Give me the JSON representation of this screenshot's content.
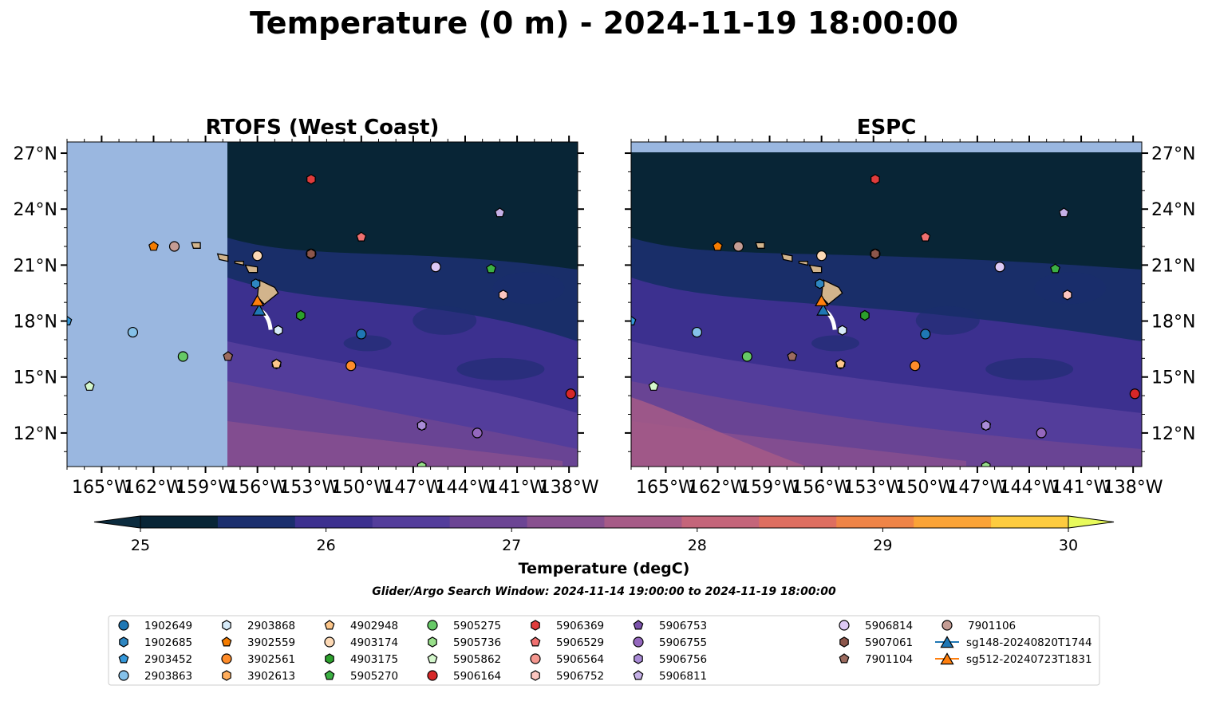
{
  "title": "Temperature (0 m) - 2024-11-19 18:00:00",
  "search_window": "Glider/Argo Search Window: 2024-11-14 19:00:00 to 2024-11-19 18:00:00",
  "colorbar": {
    "label": "Temperature (degC)",
    "ticks": [
      "25",
      "26",
      "27",
      "28",
      "29",
      "30"
    ],
    "min": 24.75,
    "max": 30.25,
    "colors": [
      "#0b2b3e",
      "#082536",
      "#1a2e6d",
      "#3c308f",
      "#533d9b",
      "#6c4594",
      "#88508f",
      "#a65b87",
      "#c4657a",
      "#de6e60",
      "#ef8447",
      "#faa337",
      "#fdcb3f",
      "#e8fa5b"
    ]
  },
  "legend": {
    "items": [
      {
        "label": "1902649",
        "marker": "circle",
        "color": "#1f77b4"
      },
      {
        "label": "1902685",
        "marker": "hexagon",
        "color": "#2e86c1"
      },
      {
        "label": "2903452",
        "marker": "pentagon",
        "color": "#3498db"
      },
      {
        "label": "2903863",
        "marker": "circle",
        "color": "#85c1e9"
      },
      {
        "label": "2903868",
        "marker": "hexagon",
        "color": "#d6eaf8"
      },
      {
        "label": "3902559",
        "marker": "pentagon",
        "color": "#f57c00"
      },
      {
        "label": "3902561",
        "marker": "circle",
        "color": "#ff8c2a"
      },
      {
        "label": "3902613",
        "marker": "hexagon",
        "color": "#ffad5c"
      },
      {
        "label": "4902948",
        "marker": "pentagon",
        "color": "#fdc68a"
      },
      {
        "label": "4903174",
        "marker": "circle",
        "color": "#fdd9b5"
      },
      {
        "label": "4903175",
        "marker": "hexagon",
        "color": "#2ca02c"
      },
      {
        "label": "5905270",
        "marker": "pentagon",
        "color": "#3cb043"
      },
      {
        "label": "5905275",
        "marker": "circle",
        "color": "#66c966"
      },
      {
        "label": "5905736",
        "marker": "hexagon",
        "color": "#98df8a"
      },
      {
        "label": "5905862",
        "marker": "pentagon",
        "color": "#d4f7cc"
      },
      {
        "label": "5906164",
        "marker": "circle",
        "color": "#d62728"
      },
      {
        "label": "5906369",
        "marker": "hexagon",
        "color": "#e03c3c"
      },
      {
        "label": "5906529",
        "marker": "pentagon",
        "color": "#f07070"
      },
      {
        "label": "5906564",
        "marker": "circle",
        "color": "#f5978f"
      },
      {
        "label": "5906752",
        "marker": "hexagon",
        "color": "#fcc6c0"
      },
      {
        "label": "5906753",
        "marker": "pentagon",
        "color": "#7b52ab"
      },
      {
        "label": "5906755",
        "marker": "circle",
        "color": "#9467bd"
      },
      {
        "label": "5906756",
        "marker": "hexagon",
        "color": "#a98bd6"
      },
      {
        "label": "5906811",
        "marker": "pentagon",
        "color": "#c5b0e6"
      },
      {
        "label": "5906814",
        "marker": "circle",
        "color": "#ddc9f5"
      },
      {
        "label": "5907061",
        "marker": "hexagon",
        "color": "#8c564b"
      },
      {
        "label": "7901104",
        "marker": "pentagon",
        "color": "#9c6b5f"
      },
      {
        "label": "7901106",
        "marker": "circle",
        "color": "#c49c94"
      },
      {
        "label": "sg148-20240820T1744",
        "marker": "triangle-line",
        "color": "#1f77b4"
      },
      {
        "label": "sg512-20240723T1831",
        "marker": "triangle-line",
        "color": "#ff7f0e"
      }
    ]
  },
  "chart_data": [
    {
      "type": "map",
      "title": "RTOFS (West Coast)",
      "xlim": [
        -167,
        -137.5
      ],
      "ylim": [
        10.2,
        27.6
      ],
      "xticks": [
        -165,
        -162,
        -159,
        -156,
        -153,
        -150,
        -147,
        -144,
        -141,
        -138
      ],
      "xtick_labels": [
        "165°W",
        "162°W",
        "159°W",
        "156°W",
        "153°W",
        "150°W",
        "147°W",
        "144°W",
        "141°W",
        "138°W"
      ],
      "yticks": [
        12,
        15,
        18,
        21,
        24,
        27
      ],
      "ytick_labels": [
        "12°N",
        "15°N",
        "18°N",
        "21°N",
        "24°N",
        "27°N"
      ],
      "model_domain_west_lon": -157.8,
      "ytick_side": "left"
    },
    {
      "type": "map",
      "title": "ESPC",
      "xlim": [
        -167,
        -137.5
      ],
      "ylim": [
        10.2,
        27.6
      ],
      "xticks": [
        -165,
        -162,
        -159,
        -156,
        -153,
        -150,
        -147,
        -144,
        -141,
        -138
      ],
      "xtick_labels": [
        "165°W",
        "162°W",
        "159°W",
        "156°W",
        "153°W",
        "150°W",
        "147°W",
        "144°W",
        "141°W",
        "138°W"
      ],
      "yticks": [
        12,
        15,
        18,
        21,
        24,
        27
      ],
      "ytick_labels": [
        "12°N",
        "15°N",
        "18°N",
        "21°N",
        "24°N",
        "27°N"
      ],
      "model_domain_north_lat": 27.05,
      "ytick_side": "right"
    }
  ],
  "floats": [
    {
      "id": "1902649",
      "lon": -150.0,
      "lat": 17.3
    },
    {
      "id": "1902685",
      "lon": -156.1,
      "lat": 20.0
    },
    {
      "id": "2903452",
      "lon": -167.0,
      "lat": 18.0
    },
    {
      "id": "2903863",
      "lon": -163.2,
      "lat": 17.4
    },
    {
      "id": "2903868",
      "lon": -154.8,
      "lat": 17.5
    },
    {
      "id": "3902559",
      "lon": -162.0,
      "lat": 22.0
    },
    {
      "id": "3902561",
      "lon": -150.6,
      "lat": 15.6
    },
    {
      "id": "3902613",
      "lon": -154.9,
      "lat": 15.7
    },
    {
      "id": "4902948",
      "lon": -154.9,
      "lat": 15.7
    },
    {
      "id": "4903174",
      "lon": -156.0,
      "lat": 21.5
    },
    {
      "id": "4903175",
      "lon": -153.5,
      "lat": 18.3
    },
    {
      "id": "5905270",
      "lon": -142.5,
      "lat": 20.8
    },
    {
      "id": "5905275",
      "lon": -160.3,
      "lat": 16.1
    },
    {
      "id": "5905736",
      "lon": -146.5,
      "lat": 10.2
    },
    {
      "id": "5905862",
      "lon": -165.7,
      "lat": 14.5
    },
    {
      "id": "5906164",
      "lon": -137.9,
      "lat": 14.1
    },
    {
      "id": "5906369",
      "lon": -152.9,
      "lat": 25.6
    },
    {
      "id": "5906529",
      "lon": -150.0,
      "lat": 22.5
    },
    {
      "id": "5906564",
      "lon": -152.9,
      "lat": 21.6
    },
    {
      "id": "5906752",
      "lon": -141.8,
      "lat": 19.4
    },
    {
      "id": "5906753",
      "lon": -146.5,
      "lat": 12.4
    },
    {
      "id": "5906755",
      "lon": -143.3,
      "lat": 12.0
    },
    {
      "id": "5906756",
      "lon": -146.5,
      "lat": 12.4
    },
    {
      "id": "5906811",
      "lon": -142.0,
      "lat": 23.8
    },
    {
      "id": "5906814",
      "lon": -145.7,
      "lat": 20.9
    },
    {
      "id": "5907061",
      "lon": -152.9,
      "lat": 21.6
    },
    {
      "id": "7901104",
      "lon": -157.7,
      "lat": 16.1
    },
    {
      "id": "7901106",
      "lon": -160.8,
      "lat": 22.0
    }
  ],
  "gliders": [
    {
      "id": "sg148-20240820T1744",
      "lon": -155.9,
      "lat": 18.6
    },
    {
      "id": "sg512-20240723T1831",
      "lon": -156.0,
      "lat": 19.1
    }
  ]
}
